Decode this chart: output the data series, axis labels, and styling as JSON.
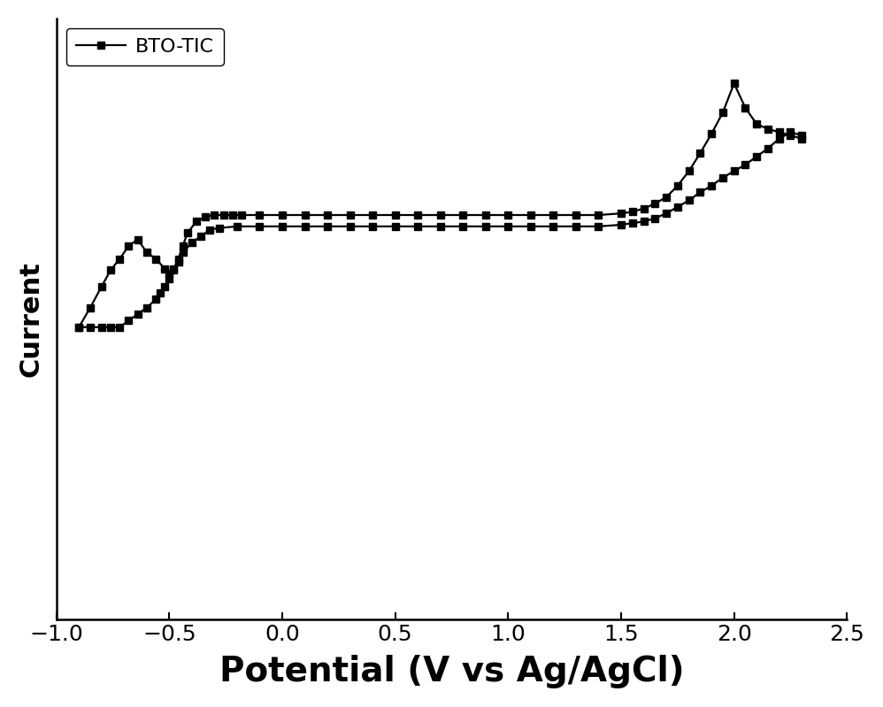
{
  "title": "",
  "xlabel": "Potential (V vs Ag/AgCl)",
  "ylabel": "Current",
  "legend_label": "BTO-TIC",
  "xlim": [
    -1.0,
    2.5
  ],
  "ylim": [
    -2.2,
    1.5
  ],
  "xticks": [
    -1.0,
    -0.5,
    0.0,
    0.5,
    1.0,
    1.5,
    2.0,
    2.5
  ],
  "line_color": "#000000",
  "marker": "s",
  "markersize": 6,
  "linewidth": 1.6,
  "background_color": "#ffffff",
  "xlabel_fontsize": 28,
  "ylabel_fontsize": 22,
  "tick_fontsize": 18,
  "legend_fontsize": 16,
  "cv_x": [
    -0.9,
    -0.85,
    -0.8,
    -0.76,
    -0.72,
    -0.68,
    -0.64,
    -0.6,
    -0.56,
    -0.52,
    -0.5,
    -0.48,
    -0.46,
    -0.44,
    -0.42,
    -0.38,
    -0.34,
    -0.3,
    -0.26,
    -0.22,
    -0.18,
    -0.1,
    0.0,
    0.1,
    0.2,
    0.3,
    0.4,
    0.5,
    0.6,
    0.7,
    0.8,
    0.9,
    1.0,
    1.1,
    1.2,
    1.3,
    1.4,
    1.5,
    1.55,
    1.6,
    1.65,
    1.7,
    1.75,
    1.8,
    1.85,
    1.9,
    1.95,
    2.0,
    2.05,
    2.1,
    2.15,
    2.2,
    2.25,
    2.3,
    2.3,
    2.25,
    2.2,
    2.15,
    2.1,
    2.05,
    2.0,
    1.95,
    1.9,
    1.85,
    1.8,
    1.75,
    1.7,
    1.65,
    1.6,
    1.55,
    1.5,
    1.4,
    1.3,
    1.2,
    1.1,
    1.0,
    0.9,
    0.8,
    0.7,
    0.6,
    0.5,
    0.4,
    0.3,
    0.2,
    0.1,
    0.0,
    -0.1,
    -0.2,
    -0.28,
    -0.32,
    -0.36,
    -0.4,
    -0.44,
    -0.46,
    -0.48,
    -0.5,
    -0.52,
    -0.54,
    -0.56,
    -0.6,
    -0.64,
    -0.68,
    -0.72,
    -0.76,
    -0.8,
    -0.85,
    -0.9
  ],
  "cv_y": [
    -0.4,
    -0.28,
    -0.15,
    -0.05,
    0.02,
    0.1,
    0.14,
    0.06,
    0.02,
    -0.04,
    -0.07,
    -0.04,
    0.02,
    0.1,
    0.18,
    0.25,
    0.28,
    0.29,
    0.29,
    0.29,
    0.29,
    0.29,
    0.29,
    0.29,
    0.29,
    0.29,
    0.29,
    0.29,
    0.29,
    0.29,
    0.29,
    0.29,
    0.29,
    0.29,
    0.29,
    0.29,
    0.29,
    0.3,
    0.31,
    0.33,
    0.36,
    0.4,
    0.47,
    0.56,
    0.67,
    0.79,
    0.92,
    1.1,
    0.95,
    0.85,
    0.82,
    0.8,
    0.78,
    0.76,
    0.78,
    0.8,
    0.76,
    0.7,
    0.65,
    0.6,
    0.56,
    0.52,
    0.47,
    0.43,
    0.38,
    0.34,
    0.3,
    0.27,
    0.25,
    0.24,
    0.23,
    0.22,
    0.22,
    0.22,
    0.22,
    0.22,
    0.22,
    0.22,
    0.22,
    0.22,
    0.22,
    0.22,
    0.22,
    0.22,
    0.22,
    0.22,
    0.22,
    0.22,
    0.21,
    0.2,
    0.16,
    0.12,
    0.06,
    0.0,
    -0.05,
    -0.1,
    -0.15,
    -0.19,
    -0.23,
    -0.28,
    -0.32,
    -0.36,
    -0.4,
    -0.4,
    -0.4,
    -0.4,
    -0.4
  ]
}
